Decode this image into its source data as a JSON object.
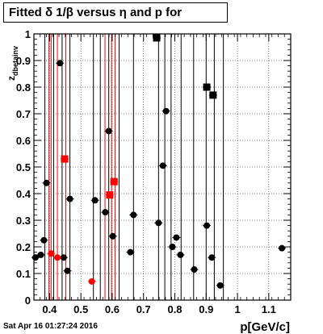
{
  "title": "Fitted δ 1/β versus η and p for",
  "timestamp": "Sat Apr 16 01:27:24 2016",
  "chart_data": {
    "type": "scatter",
    "title": "Fitted δ 1/β versus η and p for",
    "xlabel": "p[GeV/c]",
    "ylabel": "z_{dbetainv}",
    "xlim": [
      0.35,
      1.17
    ],
    "ylim": [
      0,
      1
    ],
    "xticks": [
      "0.4",
      "0.5",
      "0.6",
      "0.7",
      "0.8",
      "0.9",
      "1",
      "1.1"
    ],
    "yticks": [
      "0",
      "0.1",
      "0.2",
      "0.3",
      "0.4",
      "0.5",
      "0.6",
      "0.7",
      "0.8",
      "0.9",
      "1"
    ],
    "grid": true,
    "vertical_lines_black": [
      0.385,
      0.413,
      0.44,
      0.465,
      0.54,
      0.562,
      0.589,
      0.622,
      0.668,
      0.748,
      0.768,
      0.788,
      0.82,
      0.86,
      0.9,
      0.926,
      0.955
    ],
    "vertical_lines_red": [
      0.398,
      0.405,
      0.425,
      0.452,
      0.577,
      0.598,
      0.609
    ],
    "series": [
      {
        "marker": "circle",
        "color": "#000000",
        "x": [
          0.355,
          0.372,
          0.382,
          0.39,
          0.433,
          0.445,
          0.457,
          0.465,
          0.545,
          0.578,
          0.589,
          0.602,
          0.658,
          0.668,
          0.748,
          0.762,
          0.772,
          0.792,
          0.805,
          0.818,
          0.862,
          0.902,
          0.918,
          0.945,
          1.142
        ],
        "y": [
          0.16,
          0.17,
          0.225,
          0.44,
          0.89,
          0.16,
          0.11,
          0.38,
          0.375,
          0.33,
          0.635,
          0.24,
          0.18,
          0.32,
          0.29,
          0.505,
          0.71,
          0.2,
          0.235,
          0.17,
          0.115,
          0.28,
          0.16,
          0.055,
          0.195
        ]
      },
      {
        "marker": "square",
        "color": "#000000",
        "x": [
          0.742,
          0.902,
          0.922
        ],
        "y": [
          0.985,
          0.8,
          0.77
        ]
      },
      {
        "marker": "circle",
        "color": "#ff0000",
        "x": [
          0.405,
          0.425,
          0.535
        ],
        "y": [
          0.175,
          0.16,
          0.07
        ]
      },
      {
        "marker": "square",
        "color": "#ff0000",
        "x": [
          0.448,
          0.592,
          0.606
        ],
        "y": [
          0.53,
          0.395,
          0.445
        ]
      }
    ]
  }
}
